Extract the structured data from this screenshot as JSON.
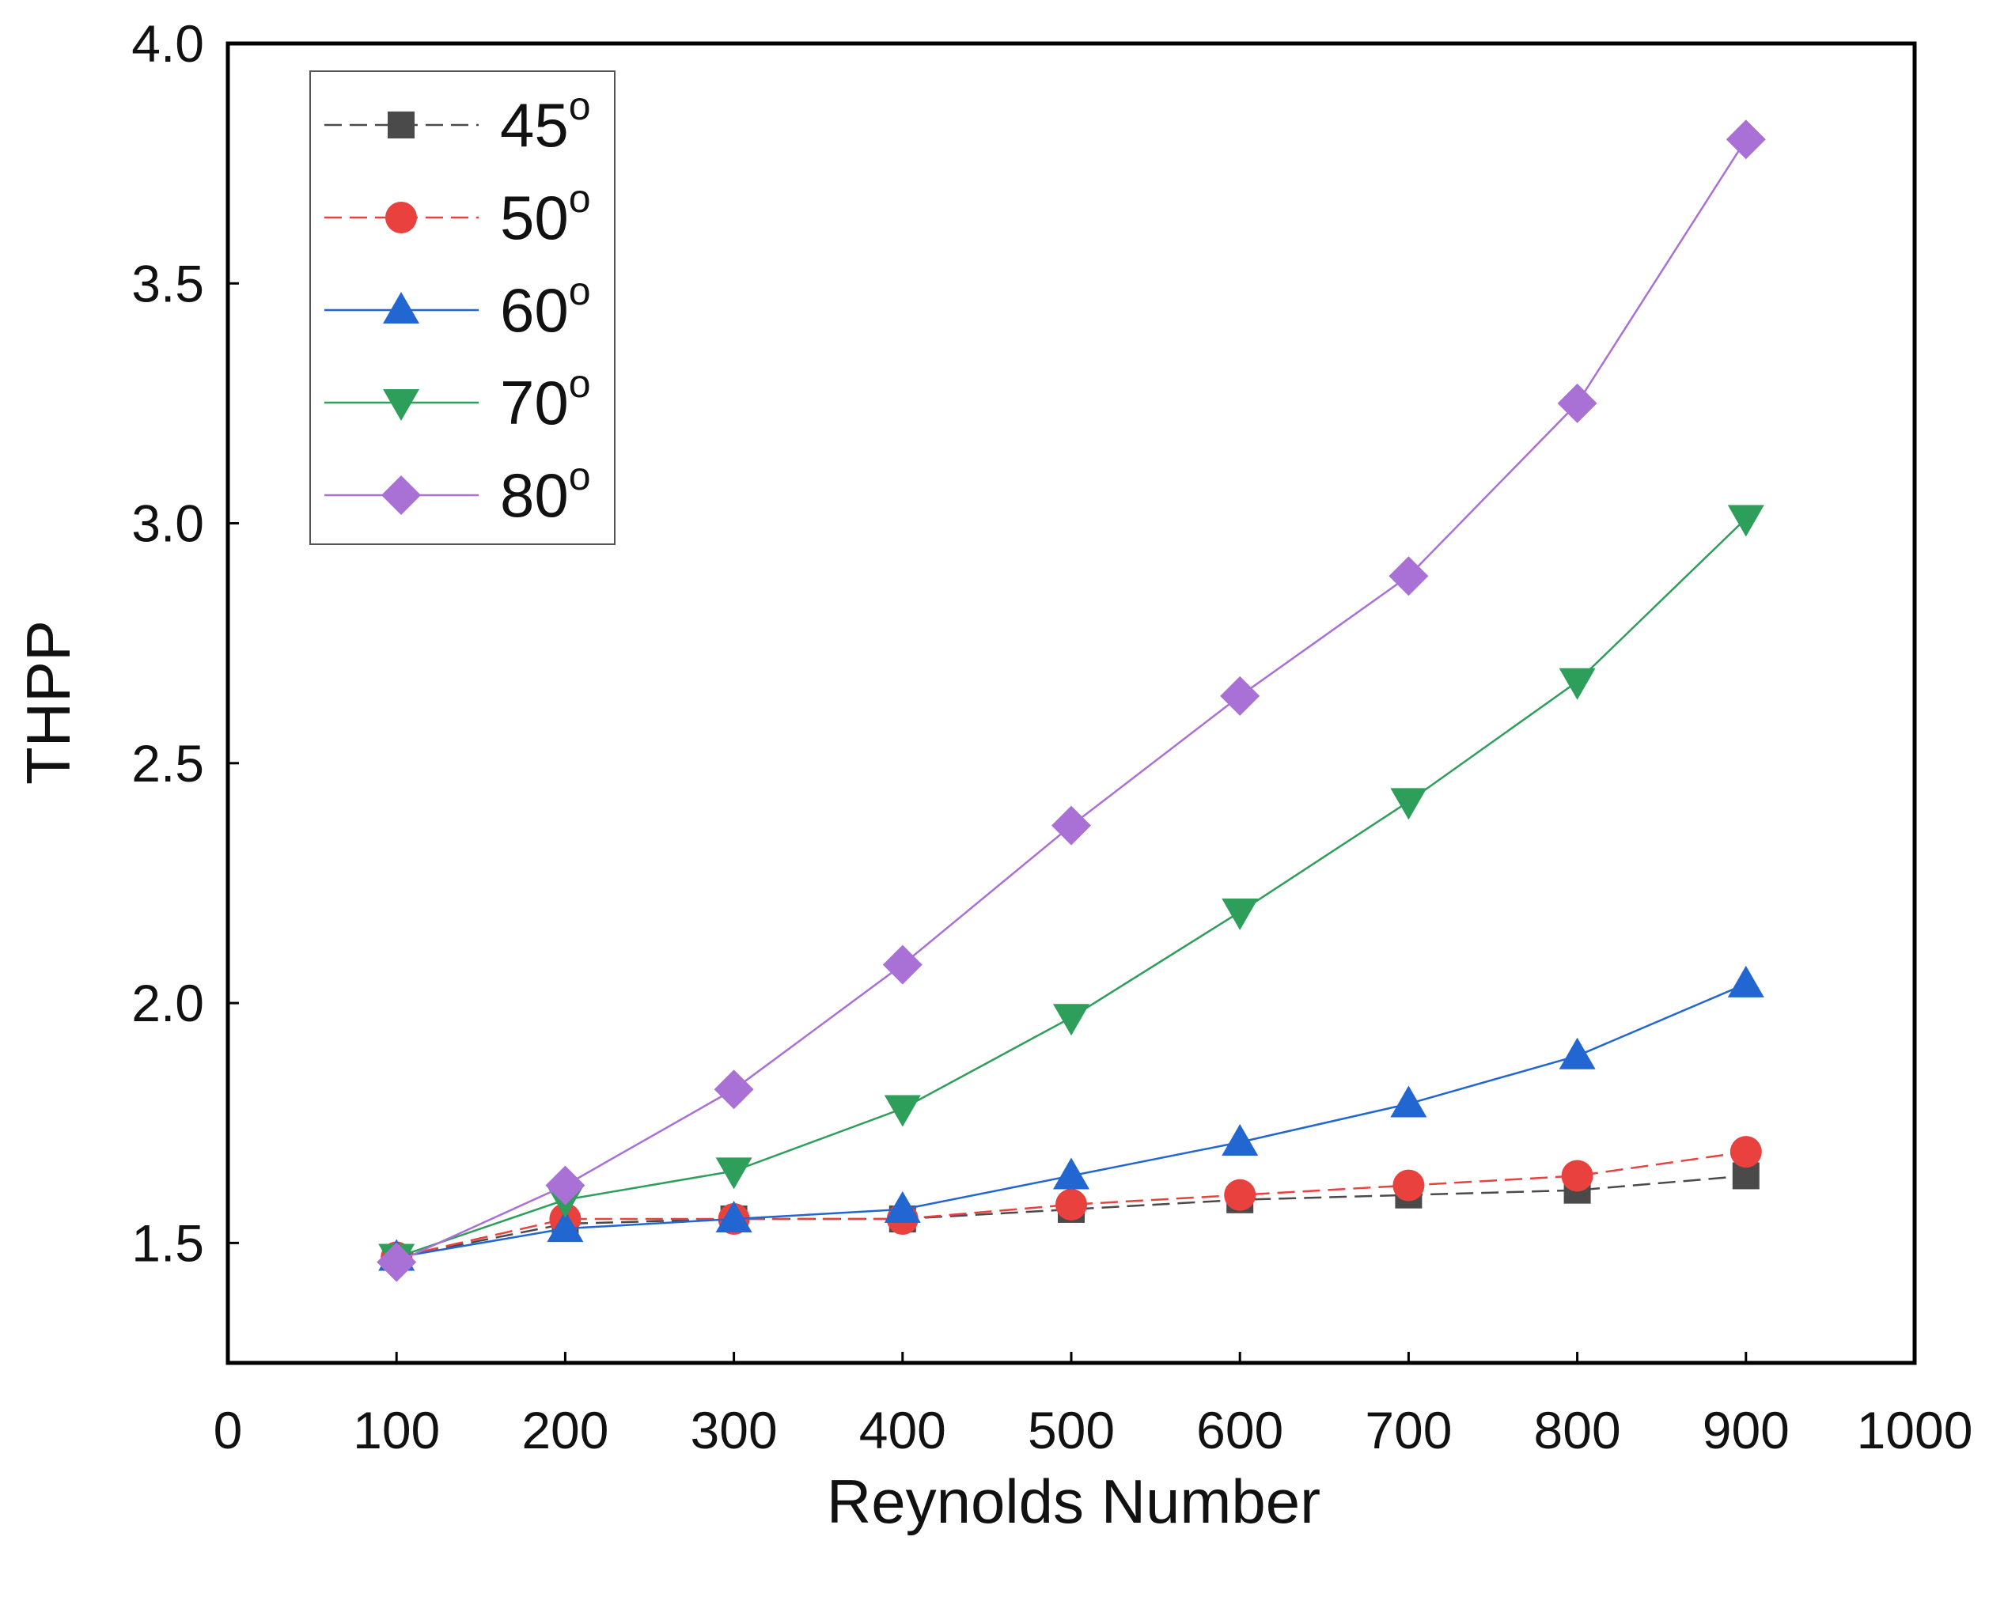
{
  "chart_data": {
    "type": "line",
    "title": "",
    "xlabel": "Reynolds Number",
    "ylabel": "THPP",
    "xlim": [
      0,
      1000
    ],
    "ylim": [
      1.25,
      4.0
    ],
    "xticks": [
      0,
      100,
      200,
      300,
      400,
      500,
      600,
      700,
      800,
      900,
      1000
    ],
    "xtick_labels": [
      "0",
      "100",
      "200",
      "300",
      "400",
      "500",
      "600",
      "700",
      "800",
      "900",
      "1000"
    ],
    "yticks": [
      1.5,
      2.0,
      2.5,
      3.0,
      3.5,
      4.0
    ],
    "ytick_labels": [
      "1.5",
      "2.0",
      "2.5",
      "3.0",
      "3.5",
      "4.0"
    ],
    "grid": false,
    "legend_position": "top-left",
    "x": [
      100,
      200,
      300,
      400,
      500,
      600,
      700,
      800,
      900
    ],
    "series": [
      {
        "name": "45",
        "sup": "o",
        "marker": "square",
        "color": "#4a4a4a",
        "dash": "dashed",
        "values": [
          1.47,
          1.54,
          1.55,
          1.55,
          1.57,
          1.59,
          1.6,
          1.61,
          1.64
        ]
      },
      {
        "name": "50",
        "sup": "o",
        "marker": "circle",
        "color": "#e8413e",
        "dash": "dashed",
        "values": [
          1.47,
          1.55,
          1.55,
          1.55,
          1.58,
          1.6,
          1.62,
          1.64,
          1.69
        ]
      },
      {
        "name": "60",
        "sup": "o",
        "marker": "triangle-up",
        "color": "#2166d1",
        "dash": "solid",
        "values": [
          1.47,
          1.53,
          1.55,
          1.57,
          1.64,
          1.71,
          1.79,
          1.89,
          2.04
        ]
      },
      {
        "name": "70",
        "sup": "o",
        "marker": "triangle-down",
        "color": "#2e9e5b",
        "dash": "solid",
        "values": [
          1.47,
          1.59,
          1.65,
          1.78,
          1.97,
          2.19,
          2.42,
          2.67,
          3.01
        ]
      },
      {
        "name": "80",
        "sup": "o",
        "marker": "diamond",
        "color": "#a970d6",
        "dash": "solid",
        "values": [
          1.46,
          1.62,
          1.82,
          2.08,
          2.37,
          2.64,
          2.89,
          3.25,
          3.8
        ]
      }
    ]
  }
}
